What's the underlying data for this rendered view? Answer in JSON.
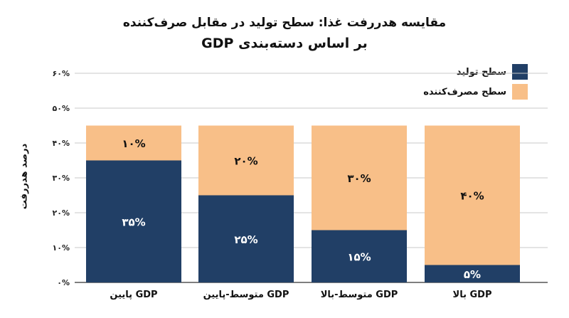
{
  "chart_data": {
    "type": "bar",
    "stacked": true,
    "title": "مقایسه هدررفت غذا: سطح تولید در مقابل صرف‌کننده",
    "subtitle": "بر اساس دسته‌بندی GDP",
    "ylabel": "درصد هدررفت",
    "ylim": [
      0,
      60
    ],
    "yticks": [
      "۰%",
      "۱۰%",
      "۲۰%",
      "۳۰%",
      "۴۰%",
      "۵۰%",
      "۶۰%"
    ],
    "categories": [
      "GDP پایین",
      "GDP متوسط-پایین",
      "GDP متوسط-بالا",
      "GDP بالا"
    ],
    "series": [
      {
        "name": "سطح تولید",
        "values": [
          35,
          25,
          15,
          5
        ],
        "labels": [
          "۳۵%",
          "۲۵%",
          "۱۵%",
          "۵%"
        ],
        "color": "#213f66"
      },
      {
        "name": "سطح مصرف‌کننده",
        "values": [
          10,
          20,
          30,
          40
        ],
        "labels": [
          "۱۰%",
          "۲۰%",
          "۳۰%",
          "۴۰%"
        ],
        "color": "#f8bf88"
      }
    ],
    "grid": true,
    "legend": "top-right"
  }
}
